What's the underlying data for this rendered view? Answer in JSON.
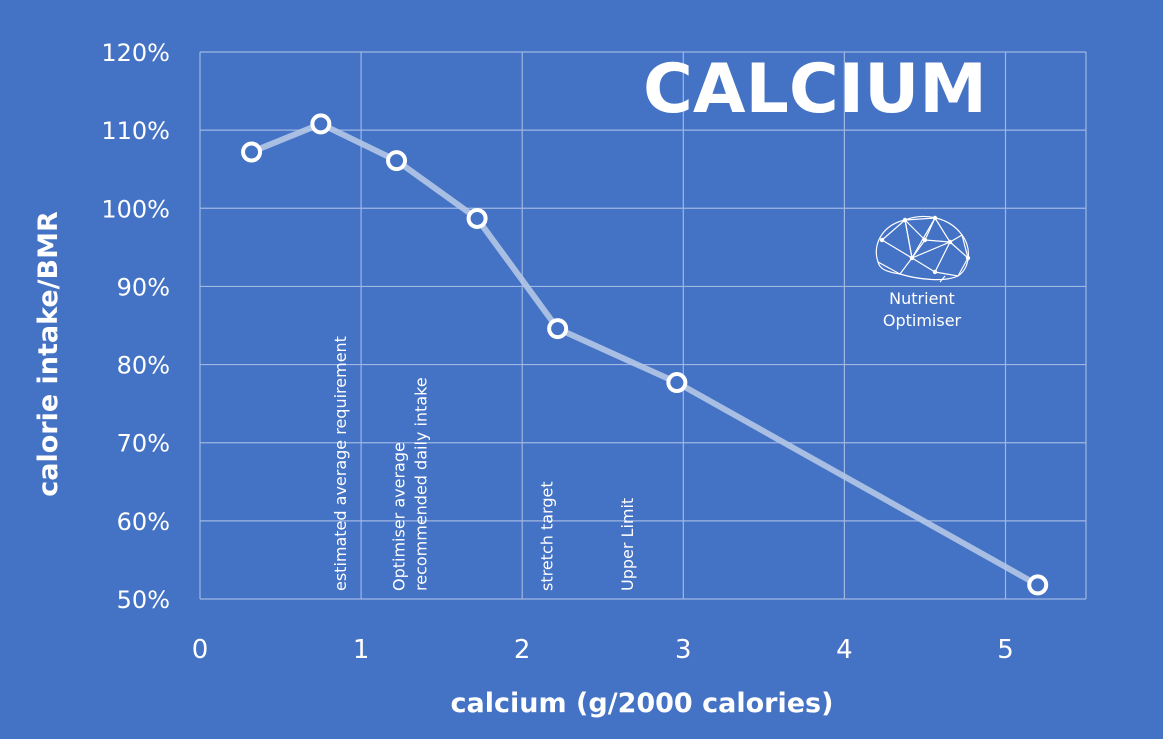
{
  "chart_data": {
    "type": "line",
    "title": "CALCIUM",
    "xlabel": "calcium (g/2000 calories)",
    "ylabel": "calorie intake/BMR",
    "xlim": [
      0,
      5.5
    ],
    "ylim": [
      0.5,
      1.2
    ],
    "x_ticks": [
      0,
      1,
      2,
      3,
      4,
      5
    ],
    "y_ticks": [
      0.5,
      0.6,
      0.7,
      0.8,
      0.9,
      1.0,
      1.1,
      1.2
    ],
    "y_tick_labels": [
      "50%",
      "60%",
      "70%",
      "80%",
      "90%",
      "100%",
      "110%",
      "120%"
    ],
    "grid": true,
    "series": [
      {
        "x": [
          0.32,
          0.75,
          1.22,
          1.72,
          2.22,
          2.96,
          5.2
        ],
        "y": [
          1.072,
          1.108,
          1.061,
          0.987,
          0.846,
          0.777,
          0.518
        ]
      }
    ],
    "annotations": [
      {
        "x": 0.87,
        "lines": [
          "estimated average requirement"
        ]
      },
      {
        "x": 1.3,
        "lines": [
          "Optimiser average",
          "recommended daily intake"
        ]
      },
      {
        "x": 2.15,
        "lines": [
          "stretch target"
        ]
      },
      {
        "x": 2.65,
        "lines": [
          "Upper Limit"
        ]
      }
    ],
    "colors": {
      "background": "#4472c4",
      "line": "#b4c7e7",
      "marker_fill": "#4472c4",
      "marker_stroke": "#ffffff",
      "text": "#ffffff"
    }
  },
  "logo": {
    "icon": "brain-icon",
    "line1": "Nutrient",
    "line2": "Optimiser"
  }
}
